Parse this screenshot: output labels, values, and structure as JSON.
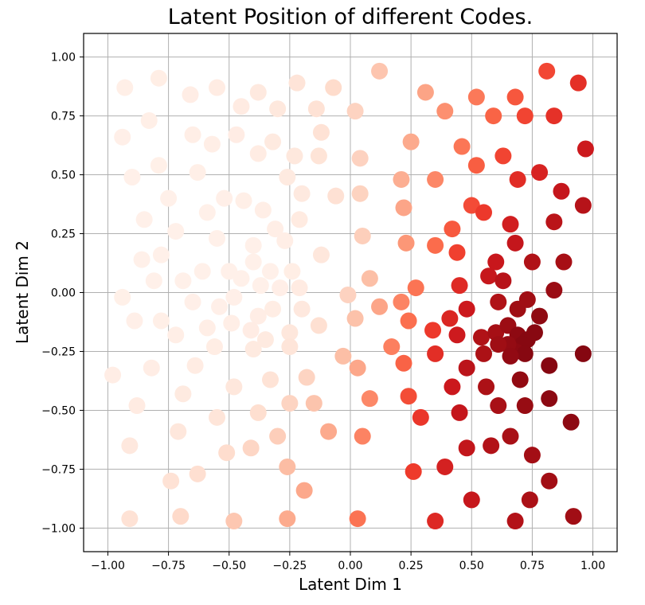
{
  "chart_data": {
    "type": "scatter",
    "title": "Latent Position of different Codes.",
    "xlabel": "Latent Dim 1",
    "ylabel": "Latent Dim 2",
    "xlim": [
      -1.1,
      1.1
    ],
    "ylim": [
      -1.1,
      1.1
    ],
    "xticks": [
      -1.0,
      -0.75,
      -0.5,
      -0.25,
      0.0,
      0.25,
      0.5,
      0.75,
      1.0
    ],
    "yticks": [
      -1.0,
      -0.75,
      -0.5,
      -0.25,
      0.0,
      0.25,
      0.5,
      0.75,
      1.0
    ],
    "xtick_labels": [
      "−1.00",
      "−0.75",
      "−0.50",
      "−0.25",
      "0.00",
      "0.25",
      "0.50",
      "0.75",
      "1.00"
    ],
    "ytick_labels": [
      "−1.00",
      "−0.75",
      "−0.50",
      "−0.25",
      "0.00",
      "0.25",
      "0.50",
      "0.75",
      "1.00"
    ],
    "grid": true,
    "colormap": "Reds",
    "color_range": [
      "#fff5f0",
      "#67000d"
    ],
    "points": [
      [
        -0.93,
        0.87
      ],
      [
        -0.79,
        0.91
      ],
      [
        -0.66,
        0.84
      ],
      [
        -0.55,
        0.87
      ],
      [
        -0.38,
        0.85
      ],
      [
        -0.45,
        0.79
      ],
      [
        -0.3,
        0.78
      ],
      [
        -0.22,
        0.89
      ],
      [
        -0.14,
        0.78
      ],
      [
        -0.07,
        0.87
      ],
      [
        -0.94,
        0.66
      ],
      [
        -0.83,
        0.73
      ],
      [
        -0.65,
        0.67
      ],
      [
        -0.57,
        0.63
      ],
      [
        -0.47,
        0.67
      ],
      [
        -0.38,
        0.59
      ],
      [
        -0.32,
        0.64
      ],
      [
        -0.23,
        0.58
      ],
      [
        -0.12,
        0.68
      ],
      [
        -0.13,
        0.58
      ],
      [
        -0.9,
        0.49
      ],
      [
        -0.79,
        0.54
      ],
      [
        -0.75,
        0.4
      ],
      [
        -0.63,
        0.51
      ],
      [
        -0.59,
        0.34
      ],
      [
        -0.52,
        0.4
      ],
      [
        -0.44,
        0.39
      ],
      [
        -0.36,
        0.35
      ],
      [
        -0.26,
        0.49
      ],
      [
        -0.2,
        0.42
      ],
      [
        -0.85,
        0.31
      ],
      [
        -0.72,
        0.26
      ],
      [
        -0.55,
        0.23
      ],
      [
        -0.4,
        0.2
      ],
      [
        -0.31,
        0.27
      ],
      [
        -0.27,
        0.22
      ],
      [
        -0.21,
        0.31
      ],
      [
        -0.86,
        0.14
      ],
      [
        -0.78,
        0.16
      ],
      [
        -0.61,
        0.09
      ],
      [
        -0.5,
        0.09
      ],
      [
        -0.4,
        0.13
      ],
      [
        -0.33,
        0.09
      ],
      [
        -0.24,
        0.09
      ],
      [
        -0.81,
        0.05
      ],
      [
        -0.69,
        0.05
      ],
      [
        -0.45,
        0.06
      ],
      [
        -0.37,
        0.03
      ],
      [
        -0.29,
        0.02
      ],
      [
        -0.21,
        0.02
      ],
      [
        -0.94,
        -0.02
      ],
      [
        -0.89,
        -0.12
      ],
      [
        -0.78,
        -0.12
      ],
      [
        -0.65,
        -0.04
      ],
      [
        -0.54,
        -0.06
      ],
      [
        -0.48,
        -0.02
      ],
      [
        -0.38,
        -0.1
      ],
      [
        -0.32,
        -0.07
      ],
      [
        -0.2,
        -0.07
      ],
      [
        -0.25,
        -0.17
      ],
      [
        -0.72,
        -0.18
      ],
      [
        -0.59,
        -0.15
      ],
      [
        -0.49,
        -0.13
      ],
      [
        -0.41,
        -0.16
      ],
      [
        -0.35,
        -0.2
      ],
      [
        -0.25,
        -0.23
      ],
      [
        -0.56,
        -0.23
      ],
      [
        -0.4,
        -0.24
      ],
      [
        -0.98,
        -0.35
      ],
      [
        -0.82,
        -0.32
      ],
      [
        -0.64,
        -0.31
      ],
      [
        -0.88,
        -0.48
      ],
      [
        -0.69,
        -0.43
      ],
      [
        -0.48,
        -0.4
      ],
      [
        -0.33,
        -0.37
      ],
      [
        -0.18,
        -0.36
      ],
      [
        -0.15,
        -0.47
      ],
      [
        -0.25,
        -0.47
      ],
      [
        -0.38,
        -0.51
      ],
      [
        -0.55,
        -0.53
      ],
      [
        -0.71,
        -0.59
      ],
      [
        -0.91,
        -0.65
      ],
      [
        -0.51,
        -0.68
      ],
      [
        -0.41,
        -0.66
      ],
      [
        -0.3,
        -0.61
      ],
      [
        -0.09,
        -0.59
      ],
      [
        -0.63,
        -0.77
      ],
      [
        -0.74,
        -0.8
      ],
      [
        -0.26,
        -0.74
      ],
      [
        -0.19,
        -0.84
      ],
      [
        -0.91,
        -0.96
      ],
      [
        -0.7,
        -0.95
      ],
      [
        -0.48,
        -0.97
      ],
      [
        -0.26,
        -0.96
      ],
      [
        0.03,
        -0.96
      ],
      [
        -0.06,
        0.41
      ],
      [
        -0.12,
        0.16
      ],
      [
        -0.13,
        -0.14
      ],
      [
        0.12,
        0.94
      ],
      [
        0.02,
        0.77
      ],
      [
        0.31,
        0.85
      ],
      [
        0.39,
        0.77
      ],
      [
        0.52,
        0.83
      ],
      [
        0.59,
        0.75
      ],
      [
        0.68,
        0.83
      ],
      [
        0.72,
        0.75
      ],
      [
        0.81,
        0.94
      ],
      [
        0.84,
        0.75
      ],
      [
        0.94,
        0.89
      ],
      [
        0.25,
        0.64
      ],
      [
        0.46,
        0.62
      ],
      [
        0.63,
        0.58
      ],
      [
        0.97,
        0.61
      ],
      [
        0.04,
        0.57
      ],
      [
        0.52,
        0.54
      ],
      [
        0.69,
        0.48
      ],
      [
        0.78,
        0.51
      ],
      [
        0.21,
        0.48
      ],
      [
        0.35,
        0.48
      ],
      [
        0.04,
        0.42
      ],
      [
        0.22,
        0.36
      ],
      [
        0.5,
        0.37
      ],
      [
        0.55,
        0.34
      ],
      [
        0.87,
        0.43
      ],
      [
        0.96,
        0.37
      ],
      [
        0.42,
        0.27
      ],
      [
        0.66,
        0.29
      ],
      [
        0.84,
        0.3
      ],
      [
        0.05,
        0.24
      ],
      [
        0.23,
        0.21
      ],
      [
        0.35,
        0.2
      ],
      [
        0.44,
        0.17
      ],
      [
        0.68,
        0.21
      ],
      [
        0.57,
        0.07
      ],
      [
        0.6,
        0.13
      ],
      [
        0.75,
        0.13
      ],
      [
        0.88,
        0.13
      ],
      [
        0.08,
        0.06
      ],
      [
        0.27,
        0.02
      ],
      [
        0.45,
        0.03
      ],
      [
        0.63,
        0.05
      ],
      [
        0.84,
        0.01
      ],
      [
        -0.01,
        -0.01
      ],
      [
        0.02,
        -0.11
      ],
      [
        0.12,
        -0.06
      ],
      [
        0.21,
        -0.04
      ],
      [
        0.24,
        -0.12
      ],
      [
        0.34,
        -0.16
      ],
      [
        0.41,
        -0.11
      ],
      [
        0.48,
        -0.07
      ],
      [
        0.61,
        -0.04
      ],
      [
        0.69,
        -0.07
      ],
      [
        0.73,
        -0.03
      ],
      [
        0.78,
        -0.1
      ],
      [
        0.44,
        -0.18
      ],
      [
        0.54,
        -0.19
      ],
      [
        0.6,
        -0.17
      ],
      [
        0.65,
        -0.14
      ],
      [
        0.69,
        -0.18
      ],
      [
        0.73,
        -0.2
      ],
      [
        0.76,
        -0.17
      ],
      [
        0.71,
        -0.22
      ],
      [
        0.68,
        -0.25
      ],
      [
        0.65,
        -0.22
      ],
      [
        0.61,
        -0.22
      ],
      [
        0.72,
        -0.26
      ],
      [
        0.66,
        -0.27
      ],
      [
        0.55,
        -0.26
      ],
      [
        0.35,
        -0.26
      ],
      [
        0.17,
        -0.23
      ],
      [
        -0.03,
        -0.27
      ],
      [
        0.03,
        -0.32
      ],
      [
        0.22,
        -0.3
      ],
      [
        0.48,
        -0.32
      ],
      [
        0.96,
        -0.26
      ],
      [
        0.82,
        -0.31
      ],
      [
        0.7,
        -0.37
      ],
      [
        0.08,
        -0.45
      ],
      [
        0.24,
        -0.44
      ],
      [
        0.42,
        -0.4
      ],
      [
        0.56,
        -0.4
      ],
      [
        0.61,
        -0.48
      ],
      [
        0.72,
        -0.48
      ],
      [
        0.82,
        -0.45
      ],
      [
        0.45,
        -0.51
      ],
      [
        0.29,
        -0.53
      ],
      [
        0.05,
        -0.61
      ],
      [
        0.48,
        -0.66
      ],
      [
        0.58,
        -0.65
      ],
      [
        0.66,
        -0.61
      ],
      [
        0.75,
        -0.69
      ],
      [
        0.91,
        -0.55
      ],
      [
        0.39,
        -0.74
      ],
      [
        0.26,
        -0.76
      ],
      [
        0.82,
        -0.8
      ],
      [
        0.5,
        -0.88
      ],
      [
        0.74,
        -0.88
      ],
      [
        0.35,
        -0.97
      ],
      [
        0.68,
        -0.97
      ],
      [
        0.92,
        -0.95
      ]
    ]
  }
}
